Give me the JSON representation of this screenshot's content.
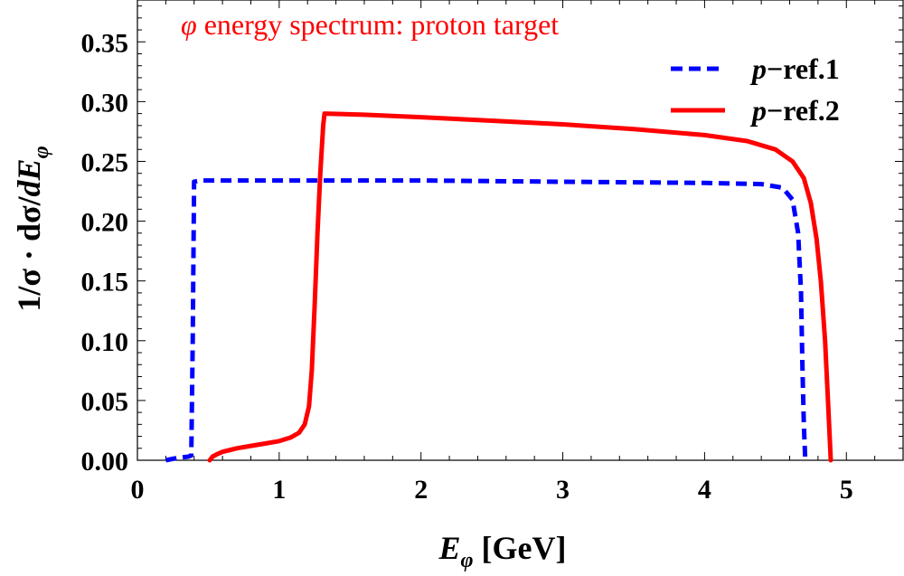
{
  "chart_data": {
    "type": "line",
    "title": "",
    "xlabel": "E_φ [GeV]",
    "xlabel_main": "E",
    "xlabel_sub": "φ",
    "xlabel_unit": " [GeV]",
    "ylabel": "1/σ · dσ/dE_φ",
    "ylabel_pre": "1/σ · dσ/",
    "ylabel_d": "d",
    "ylabel_E": "E",
    "ylabel_sub": "φ",
    "xlim": [
      0,
      5.4
    ],
    "ylim": [
      0,
      0.385
    ],
    "xticks": [
      0,
      1,
      2,
      3,
      4,
      5
    ],
    "xtick_labels": [
      "0",
      "1",
      "2",
      "3",
      "4",
      "5"
    ],
    "yticks": [
      0,
      0.05,
      0.1,
      0.15,
      0.2,
      0.25,
      0.3,
      0.35
    ],
    "ytick_labels": [
      "0.00",
      "0.05",
      "0.10",
      "0.15",
      "0.20",
      "0.25",
      "0.30",
      "0.35"
    ],
    "annotation": {
      "symbol": "φ",
      "text": " energy spectrum: proton target",
      "color": "#ff0000"
    },
    "legend_position": "top-right",
    "series": [
      {
        "name": "p−ref.1",
        "legend_p": "p",
        "legend_rest": "−ref.1",
        "color": "#0000ff",
        "style": "dashed",
        "x": [
          0.2,
          0.28,
          0.36,
          0.38,
          0.39,
          0.4,
          0.45,
          1.0,
          2.0,
          3.0,
          4.0,
          4.4,
          4.55,
          4.62,
          4.66,
          4.68,
          4.69,
          4.7,
          4.71
        ],
        "y": [
          0.0,
          0.002,
          0.003,
          0.004,
          0.1,
          0.233,
          0.234,
          0.234,
          0.234,
          0.233,
          0.232,
          0.231,
          0.228,
          0.218,
          0.19,
          0.14,
          0.08,
          0.03,
          0.0
        ]
      },
      {
        "name": "p−ref.2",
        "legend_p": "p",
        "legend_rest": "−ref.2",
        "color": "#ff0000",
        "style": "solid",
        "x": [
          0.51,
          0.53,
          0.56,
          0.6,
          0.7,
          0.8,
          0.9,
          1.0,
          1.08,
          1.14,
          1.18,
          1.21,
          1.23,
          1.25,
          1.27,
          1.29,
          1.31,
          1.32,
          1.6,
          2.0,
          2.5,
          3.0,
          3.5,
          4.0,
          4.3,
          4.5,
          4.62,
          4.7,
          4.75,
          4.79,
          4.82,
          4.85,
          4.87,
          4.89
        ],
        "y": [
          0.0,
          0.003,
          0.005,
          0.007,
          0.01,
          0.012,
          0.014,
          0.016,
          0.019,
          0.023,
          0.03,
          0.045,
          0.075,
          0.13,
          0.19,
          0.24,
          0.28,
          0.29,
          0.289,
          0.287,
          0.284,
          0.281,
          0.277,
          0.272,
          0.267,
          0.26,
          0.25,
          0.236,
          0.215,
          0.185,
          0.15,
          0.1,
          0.05,
          0.0
        ]
      }
    ]
  }
}
